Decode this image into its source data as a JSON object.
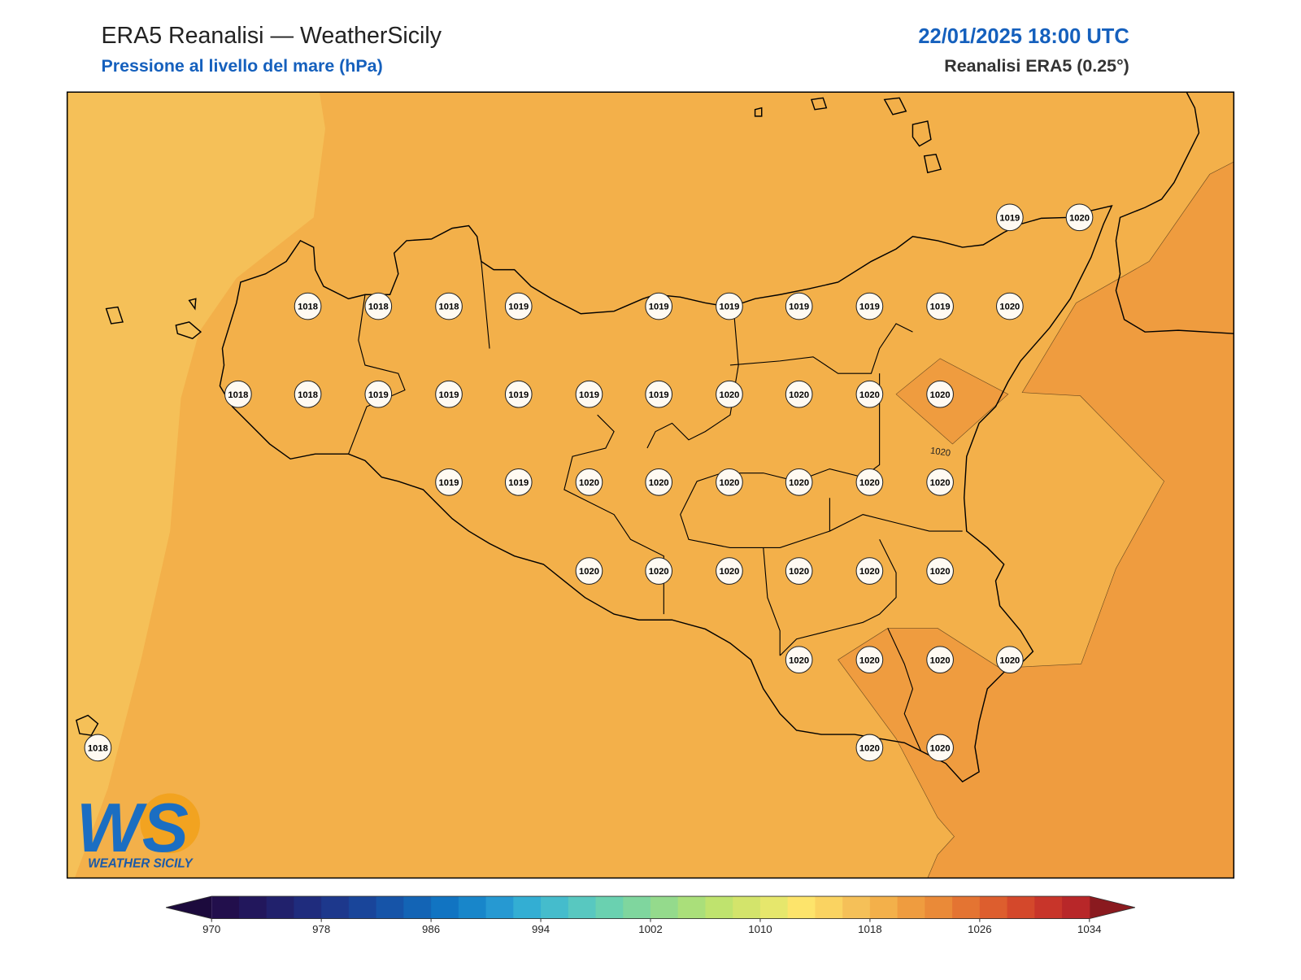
{
  "header": {
    "title": "ERA5 Reanalisi — WeatherSicily",
    "subtitle": "Pressione al livello del mare (hPa)",
    "datetime": "22/01/2025 18:00 UTC",
    "source": "Reanalisi ERA5 (0.25°)"
  },
  "pressure_labels": [
    1019,
    1020,
    1018,
    1018,
    1018,
    1019,
    1019,
    1019,
    1019,
    1019,
    1019,
    1020,
    1018,
    1018,
    1019,
    1019,
    1019,
    1019,
    1019,
    1020,
    1020,
    1020,
    1020,
    1019,
    1019,
    1020,
    1020,
    1020,
    1020,
    1020,
    1020,
    1020,
    1020,
    1020,
    1020,
    1020,
    1020,
    1020,
    1020,
    1020,
    1020,
    1018,
    1020,
    1020
  ],
  "contour_label": "1020",
  "colorbar": {
    "ticks": [
      970,
      978,
      986,
      994,
      1002,
      1010,
      1018,
      1026,
      1034
    ],
    "levels": [
      970,
      972,
      974,
      976,
      978,
      980,
      982,
      984,
      986,
      988,
      990,
      992,
      994,
      996,
      998,
      1000,
      1002,
      1004,
      1006,
      1008,
      1010,
      1012,
      1014,
      1016,
      1018,
      1020,
      1022,
      1024,
      1026,
      1028,
      1030,
      1032,
      1034
    ],
    "colors": [
      "#220f4c",
      "#22175c",
      "#21216c",
      "#1f2c7d",
      "#1d388c",
      "#19459a",
      "#1654a8",
      "#1364b5",
      "#1174c2",
      "#1886ca",
      "#2699d2",
      "#33aed3",
      "#45bccc",
      "#58c8c0",
      "#6ad1b0",
      "#7fd69e",
      "#94da8c",
      "#aadf7a",
      "#bfe36e",
      "#d3e46b",
      "#e6e76c",
      "#fde46b",
      "#fad361",
      "#f5c058",
      "#f3b04a",
      "#ef9c3f",
      "#ea8a38",
      "#e47432",
      "#dd5e2e",
      "#d4482b",
      "#c8352a",
      "#b82729"
    ],
    "under_color": "#1c0a3d",
    "over_color": "#8a1a1f"
  },
  "logo": {
    "mark": "WS",
    "name": "WEATHER SICILY"
  }
}
